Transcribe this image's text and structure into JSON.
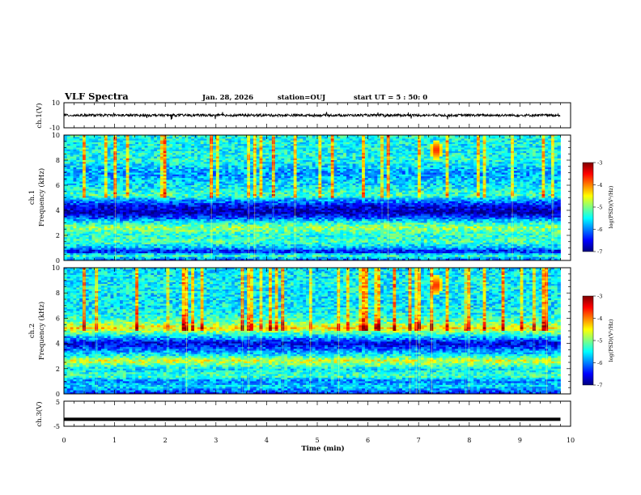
{
  "header": {
    "title": "VLF Spectra",
    "date": "Jan. 28, 2026",
    "station": "station=OUJ",
    "start": "start  UT =  5 : 50: 0"
  },
  "chart_data": [
    {
      "type": "line",
      "name": "ch1-waveform",
      "ylabel": "ch.1(V)",
      "yticks": [
        "10",
        "-10"
      ],
      "ylim": [
        -10,
        10
      ],
      "xlim": [
        0,
        10
      ],
      "description_hidden": true,
      "baseline": 0,
      "noise_amplitude": 1.0,
      "data_end_min": 9.8
    },
    {
      "type": "heatmap",
      "name": "ch1-spectrogram",
      "ylabel_line1": "ch.1",
      "ylabel_line2": "Frequency (kHz)",
      "xlim": [
        0,
        10
      ],
      "ylim": [
        0,
        10
      ],
      "yticks": [
        "0",
        "2",
        "4",
        "6",
        "8",
        "10"
      ],
      "data_end_min": 9.8,
      "colorscale_range": [
        -7,
        -3
      ],
      "bands_khz_logpsd": [
        [
          0.0,
          -6.2
        ],
        [
          0.4,
          -5.2
        ],
        [
          0.7,
          -6.6
        ],
        [
          1.0,
          -5.8
        ],
        [
          1.5,
          -5.2
        ],
        [
          2.0,
          -5.4
        ],
        [
          2.6,
          -4.9
        ],
        [
          3.0,
          -5.4
        ],
        [
          3.4,
          -6.2
        ],
        [
          3.8,
          -6.8
        ],
        [
          4.3,
          -6.6
        ],
        [
          4.8,
          -5.9
        ],
        [
          5.2,
          -5.2
        ],
        [
          6.0,
          -5.6
        ],
        [
          7.0,
          -5.9
        ],
        [
          8.0,
          -5.4
        ],
        [
          9.0,
          -5.5
        ],
        [
          10.0,
          -5.4
        ]
      ],
      "burst": {
        "t_min": 7.35,
        "f_khz": 8.8,
        "logpsd": -3.4
      }
    },
    {
      "type": "heatmap",
      "name": "ch2-spectrogram",
      "ylabel_line1": "ch.2",
      "ylabel_line2": "Frequency (kHz)",
      "xlim": [
        0,
        10
      ],
      "ylim": [
        0,
        10
      ],
      "yticks": [
        "0",
        "2",
        "4",
        "6",
        "8",
        "10"
      ],
      "data_end_min": 9.8,
      "colorscale_range": [
        -7,
        -3
      ],
      "bands_khz_logpsd": [
        [
          0.0,
          -6.4
        ],
        [
          0.6,
          -5.6
        ],
        [
          1.0,
          -6.0
        ],
        [
          1.4,
          -5.2
        ],
        [
          2.0,
          -5.6
        ],
        [
          2.6,
          -4.6
        ],
        [
          3.0,
          -5.4
        ],
        [
          3.6,
          -6.2
        ],
        [
          4.0,
          -6.6
        ],
        [
          4.6,
          -5.6
        ],
        [
          5.2,
          -4.4
        ],
        [
          5.8,
          -5.2
        ],
        [
          6.5,
          -5.5
        ],
        [
          7.5,
          -5.6
        ],
        [
          8.5,
          -5.5
        ],
        [
          10.0,
          -5.6
        ]
      ],
      "burst": {
        "t_min": 7.35,
        "f_khz": 8.6,
        "logpsd": -3.4
      }
    },
    {
      "type": "line",
      "name": "ch3-waveform",
      "ylabel": "ch.3(V)",
      "yticks": [
        "5",
        "-5"
      ],
      "ylim": [
        -5,
        5
      ],
      "xlim": [
        0,
        10
      ],
      "value": -2.2,
      "data_end_min": 9.8
    }
  ],
  "xaxis": {
    "label": "Time (min)",
    "ticks": [
      "0",
      "1",
      "2",
      "3",
      "4",
      "5",
      "6",
      "7",
      "8",
      "9",
      "10"
    ]
  },
  "colorbar": {
    "label": "log(PSD)(V²/Hz)",
    "ticks": [
      "-3",
      "-4",
      "-5",
      "-6",
      "-7"
    ],
    "colors": [
      "#00007f",
      "#0000ff",
      "#0080ff",
      "#00ffff",
      "#80ff80",
      "#ffff00",
      "#ff8000",
      "#ff0000",
      "#7f0000"
    ]
  }
}
